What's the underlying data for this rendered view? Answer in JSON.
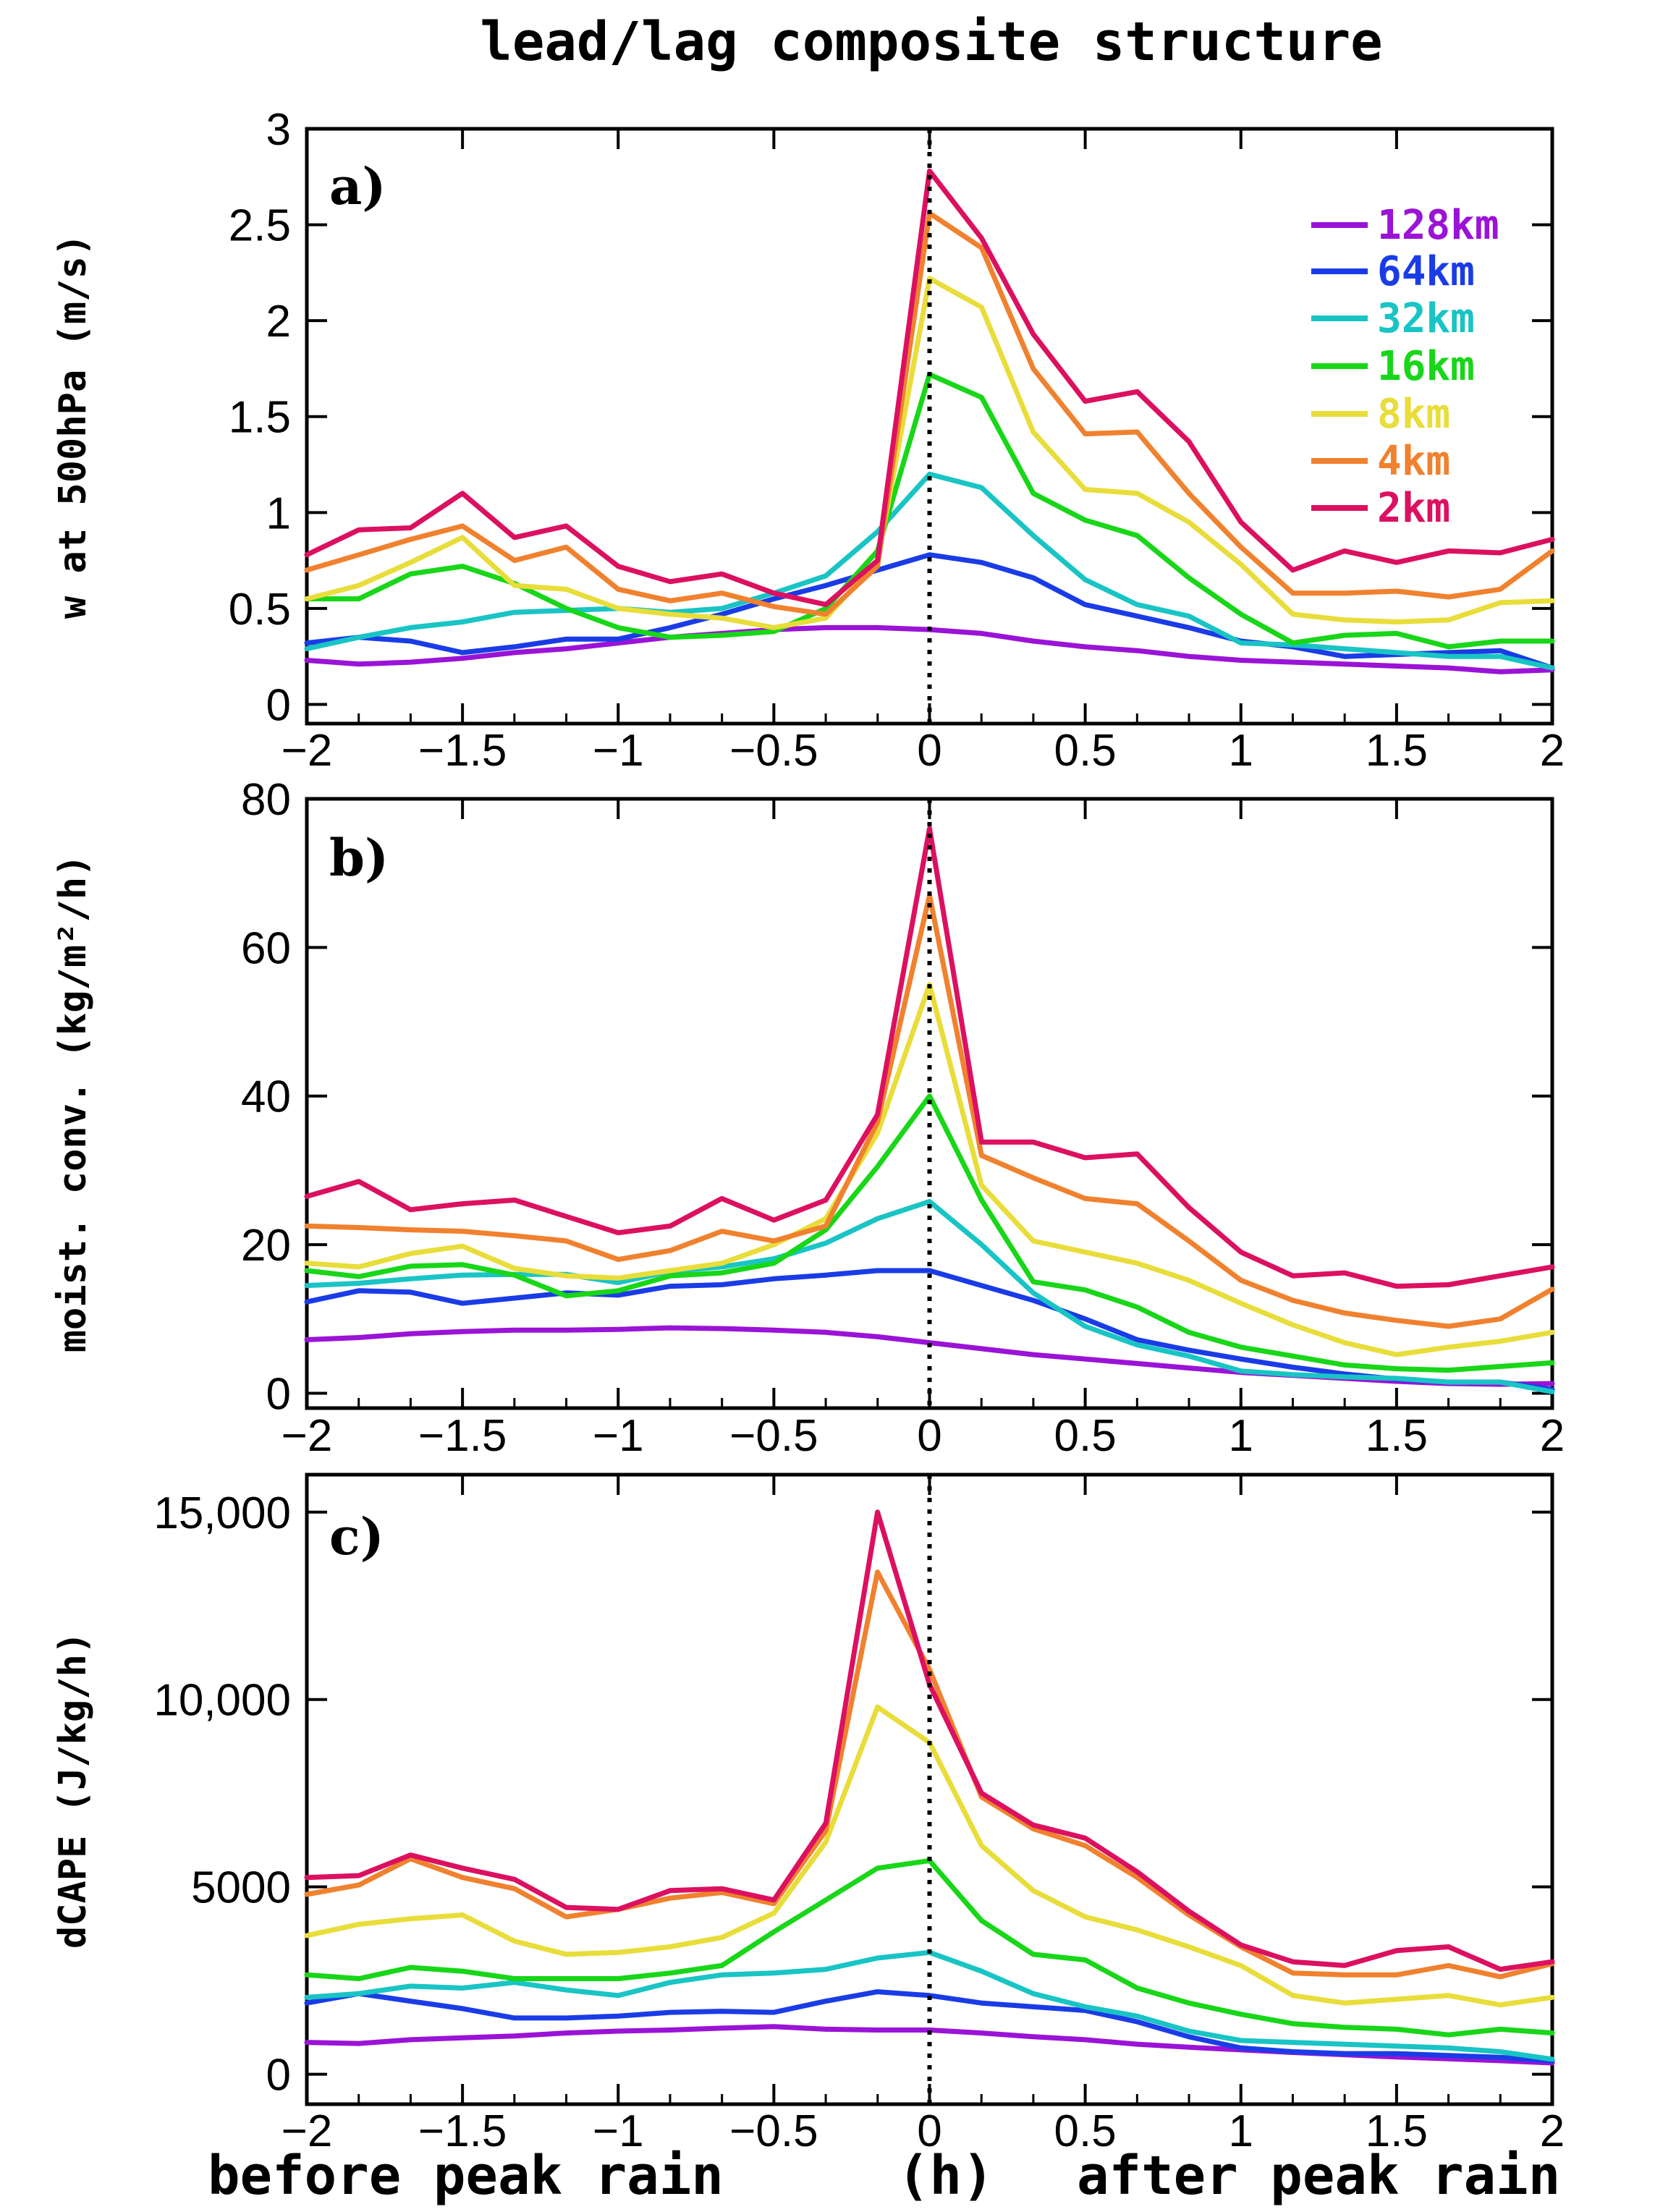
{
  "title": "lead/lag composite structure",
  "xlabel_left": "before peak rain",
  "xlabel_mid": "(h)",
  "xlabel_right": "after peak rain",
  "x_ticks": [
    "−2",
    "−1.5",
    "−1",
    "−0.5",
    "0",
    "0.5",
    "1",
    "1.5",
    "2"
  ],
  "legend": [
    {
      "name": "128km",
      "color": "#9a13d6"
    },
    {
      "name": "64km",
      "color": "#1a3ce6"
    },
    {
      "name": "32km",
      "color": "#19c4c4"
    },
    {
      "name": "16km",
      "color": "#18d618"
    },
    {
      "name": "8km",
      "color": "#e8dd3a"
    },
    {
      "name": "4km",
      "color": "#f0812e"
    },
    {
      "name": "2km",
      "color": "#dc1060"
    }
  ],
  "chart_data": [
    {
      "type": "line",
      "panel": "a)",
      "ylabel": "w at 500hPa (m/s)",
      "xlim": [
        -2,
        2
      ],
      "ylim": [
        -0.1,
        3
      ],
      "y_ticks": [
        {
          "v": 0,
          "label": "0"
        },
        {
          "v": 0.5,
          "label": "0.5"
        },
        {
          "v": 1,
          "label": "1"
        },
        {
          "v": 1.5,
          "label": "1.5"
        },
        {
          "v": 2,
          "label": "2"
        },
        {
          "v": 2.5,
          "label": "2.5"
        },
        {
          "v": 3,
          "label": "3"
        }
      ],
      "x": [
        -2,
        -1.833,
        -1.667,
        -1.5,
        -1.333,
        -1.167,
        -1,
        -0.833,
        -0.667,
        -0.5,
        -0.333,
        -0.167,
        0,
        0.167,
        0.333,
        0.5,
        0.667,
        0.833,
        1,
        1.167,
        1.333,
        1.5,
        1.667,
        1.833,
        2
      ],
      "series": [
        {
          "name": "128km",
          "values": [
            0.23,
            0.21,
            0.22,
            0.24,
            0.27,
            0.29,
            0.32,
            0.35,
            0.37,
            0.39,
            0.4,
            0.4,
            0.39,
            0.37,
            0.33,
            0.3,
            0.28,
            0.25,
            0.23,
            0.22,
            0.21,
            0.2,
            0.19,
            0.17,
            0.18
          ]
        },
        {
          "name": "64km",
          "values": [
            0.32,
            0.35,
            0.33,
            0.27,
            0.3,
            0.34,
            0.34,
            0.4,
            0.47,
            0.55,
            0.62,
            0.7,
            0.78,
            0.74,
            0.66,
            0.52,
            0.46,
            0.4,
            0.33,
            0.3,
            0.25,
            0.26,
            0.27,
            0.28,
            0.19
          ]
        },
        {
          "name": "32km",
          "values": [
            0.29,
            0.35,
            0.4,
            0.43,
            0.48,
            0.49,
            0.5,
            0.48,
            0.5,
            0.58,
            0.67,
            0.9,
            1.2,
            1.13,
            0.88,
            0.65,
            0.52,
            0.46,
            0.32,
            0.31,
            0.29,
            0.27,
            0.25,
            0.25,
            0.19
          ]
        },
        {
          "name": "16km",
          "values": [
            0.55,
            0.55,
            0.68,
            0.72,
            0.63,
            0.5,
            0.4,
            0.35,
            0.36,
            0.38,
            0.5,
            0.8,
            1.72,
            1.6,
            1.1,
            0.96,
            0.88,
            0.66,
            0.47,
            0.32,
            0.36,
            0.37,
            0.3,
            0.33,
            0.33
          ]
        },
        {
          "name": "8km",
          "values": [
            0.55,
            0.62,
            0.74,
            0.87,
            0.62,
            0.6,
            0.5,
            0.47,
            0.45,
            0.4,
            0.45,
            0.75,
            2.22,
            2.07,
            1.42,
            1.12,
            1.1,
            0.95,
            0.73,
            0.47,
            0.44,
            0.43,
            0.44,
            0.53,
            0.54
          ]
        },
        {
          "name": "4km",
          "values": [
            0.7,
            0.78,
            0.86,
            0.93,
            0.75,
            0.82,
            0.6,
            0.54,
            0.58,
            0.51,
            0.47,
            0.72,
            2.56,
            2.38,
            1.75,
            1.41,
            1.42,
            1.1,
            0.82,
            0.58,
            0.58,
            0.59,
            0.56,
            0.6,
            0.8
          ]
        },
        {
          "name": "2km",
          "values": [
            0.78,
            0.91,
            0.92,
            1.1,
            0.87,
            0.93,
            0.72,
            0.64,
            0.68,
            0.58,
            0.52,
            0.75,
            2.78,
            2.43,
            1.93,
            1.58,
            1.63,
            1.37,
            0.95,
            0.7,
            0.8,
            0.74,
            0.8,
            0.79,
            0.86
          ]
        }
      ]
    },
    {
      "type": "line",
      "panel": "b)",
      "ylabel": "moist. conv. (kg/m²/h)",
      "xlim": [
        -2,
        2
      ],
      "ylim": [
        -2,
        80
      ],
      "y_ticks": [
        {
          "v": 0,
          "label": "0"
        },
        {
          "v": 20,
          "label": "20"
        },
        {
          "v": 40,
          "label": "40"
        },
        {
          "v": 60,
          "label": "60"
        },
        {
          "v": 80,
          "label": "80"
        }
      ],
      "x": [
        -2,
        -1.833,
        -1.667,
        -1.5,
        -1.333,
        -1.167,
        -1,
        -0.833,
        -0.667,
        -0.5,
        -0.333,
        -0.167,
        0,
        0.167,
        0.333,
        0.5,
        0.667,
        0.833,
        1,
        1.167,
        1.333,
        1.5,
        1.667,
        1.833,
        2
      ],
      "series": [
        {
          "name": "128km",
          "values": [
            7.2,
            7.5,
            8.0,
            8.3,
            8.5,
            8.5,
            8.6,
            8.8,
            8.7,
            8.5,
            8.2,
            7.6,
            6.8,
            6.0,
            5.2,
            4.6,
            4.0,
            3.4,
            2.8,
            2.4,
            2.0,
            1.6,
            1.3,
            1.2,
            1.3
          ]
        },
        {
          "name": "64km",
          "values": [
            12.3,
            13.8,
            13.6,
            12.1,
            12.8,
            13.5,
            13.2,
            14.4,
            14.6,
            15.4,
            15.9,
            16.5,
            16.5,
            14.5,
            12.5,
            10.0,
            7.2,
            5.8,
            4.6,
            3.5,
            2.6,
            1.9,
            1.5,
            1.5,
            0.5
          ]
        },
        {
          "name": "32km",
          "values": [
            14.5,
            14.8,
            15.4,
            15.9,
            16.0,
            16.0,
            14.9,
            16.4,
            17.0,
            18.1,
            20.2,
            23.5,
            25.8,
            20.0,
            13.5,
            9.0,
            6.5,
            5.0,
            3.0,
            2.5,
            2.2,
            2.0,
            1.5,
            1.5,
            0.2
          ]
        },
        {
          "name": "16km",
          "values": [
            16.5,
            15.7,
            17.1,
            17.3,
            15.9,
            13.1,
            13.8,
            15.8,
            16.2,
            17.5,
            22.0,
            30.5,
            40.0,
            26.0,
            15.0,
            13.9,
            11.6,
            8.2,
            6.2,
            5.0,
            3.8,
            3.3,
            3.1,
            3.6,
            4.1
          ]
        },
        {
          "name": "8km",
          "values": [
            17.5,
            17.0,
            18.8,
            19.8,
            16.8,
            15.8,
            15.5,
            16.5,
            17.5,
            20.0,
            23.5,
            35.0,
            55.0,
            28.0,
            20.5,
            19.0,
            17.5,
            15.2,
            12.1,
            9.2,
            6.8,
            5.2,
            6.2,
            7.0,
            8.2
          ]
        },
        {
          "name": "4km",
          "values": [
            22.5,
            22.3,
            22.0,
            21.8,
            21.2,
            20.5,
            18.0,
            19.2,
            21.8,
            20.5,
            22.5,
            36.5,
            67.0,
            32.0,
            29.0,
            26.2,
            25.5,
            20.5,
            15.2,
            12.5,
            10.8,
            9.8,
            9.0,
            10.0,
            14.0
          ]
        },
        {
          "name": "2km",
          "values": [
            26.5,
            28.5,
            24.7,
            25.5,
            26.0,
            23.8,
            21.6,
            22.5,
            26.2,
            23.3,
            26.0,
            37.5,
            76.0,
            33.8,
            33.8,
            31.7,
            32.2,
            25.0,
            19.0,
            15.8,
            16.2,
            14.4,
            14.6,
            15.8,
            17.0
          ]
        }
      ]
    },
    {
      "type": "line",
      "panel": "c)",
      "ylabel": "dCAPE (J/kg/h)",
      "xlim": [
        -2,
        2
      ],
      "ylim": [
        -800,
        16000
      ],
      "y_ticks": [
        {
          "v": 0,
          "label": "0"
        },
        {
          "v": 5000,
          "label": "5000"
        },
        {
          "v": 10000,
          "label": "10,000"
        },
        {
          "v": 15000,
          "label": "15,000"
        }
      ],
      "x": [
        -2,
        -1.833,
        -1.667,
        -1.5,
        -1.333,
        -1.167,
        -1,
        -0.833,
        -0.667,
        -0.5,
        -0.333,
        -0.167,
        0,
        0.167,
        0.333,
        0.5,
        0.667,
        0.833,
        1,
        1.167,
        1.333,
        1.5,
        1.667,
        1.833,
        2
      ],
      "series": [
        {
          "name": "128km",
          "values": [
            850,
            820,
            920,
            970,
            1020,
            1100,
            1150,
            1180,
            1230,
            1270,
            1200,
            1180,
            1180,
            1100,
            1000,
            920,
            800,
            720,
            650,
            580,
            520,
            460,
            410,
            360,
            300
          ]
        },
        {
          "name": "64km",
          "values": [
            1900,
            2150,
            1950,
            1750,
            1500,
            1500,
            1550,
            1650,
            1680,
            1650,
            1950,
            2200,
            2100,
            1900,
            1800,
            1700,
            1400,
            1000,
            700,
            600,
            550,
            550,
            500,
            450,
            350
          ]
        },
        {
          "name": "32km",
          "values": [
            2050,
            2150,
            2350,
            2300,
            2450,
            2250,
            2100,
            2450,
            2650,
            2700,
            2800,
            3100,
            3250,
            2750,
            2150,
            1800,
            1550,
            1150,
            900,
            850,
            800,
            750,
            700,
            600,
            400
          ]
        },
        {
          "name": "16km",
          "values": [
            2650,
            2550,
            2850,
            2750,
            2550,
            2550,
            2550,
            2700,
            2900,
            3800,
            4650,
            5500,
            5700,
            4100,
            3200,
            3050,
            2300,
            1900,
            1600,
            1350,
            1250,
            1200,
            1050,
            1200,
            1100
          ]
        },
        {
          "name": "8km",
          "values": [
            3700,
            4000,
            4150,
            4250,
            3550,
            3200,
            3250,
            3400,
            3650,
            4300,
            6200,
            9800,
            8850,
            6100,
            4900,
            4200,
            3850,
            3400,
            2900,
            2100,
            1900,
            2000,
            2100,
            1850,
            2050
          ]
        },
        {
          "name": "4km",
          "values": [
            4800,
            5050,
            5750,
            5250,
            4950,
            4200,
            4400,
            4700,
            4850,
            4550,
            6500,
            13400,
            10800,
            7400,
            6550,
            6100,
            5250,
            4250,
            3400,
            2700,
            2650,
            2650,
            2900,
            2600,
            2950
          ]
        },
        {
          "name": "2km",
          "values": [
            5250,
            5300,
            5850,
            5500,
            5200,
            4450,
            4400,
            4900,
            4950,
            4650,
            6700,
            15000,
            10400,
            7500,
            6650,
            6300,
            5400,
            4350,
            3450,
            3000,
            2900,
            3300,
            3400,
            2800,
            3000
          ]
        }
      ]
    }
  ]
}
